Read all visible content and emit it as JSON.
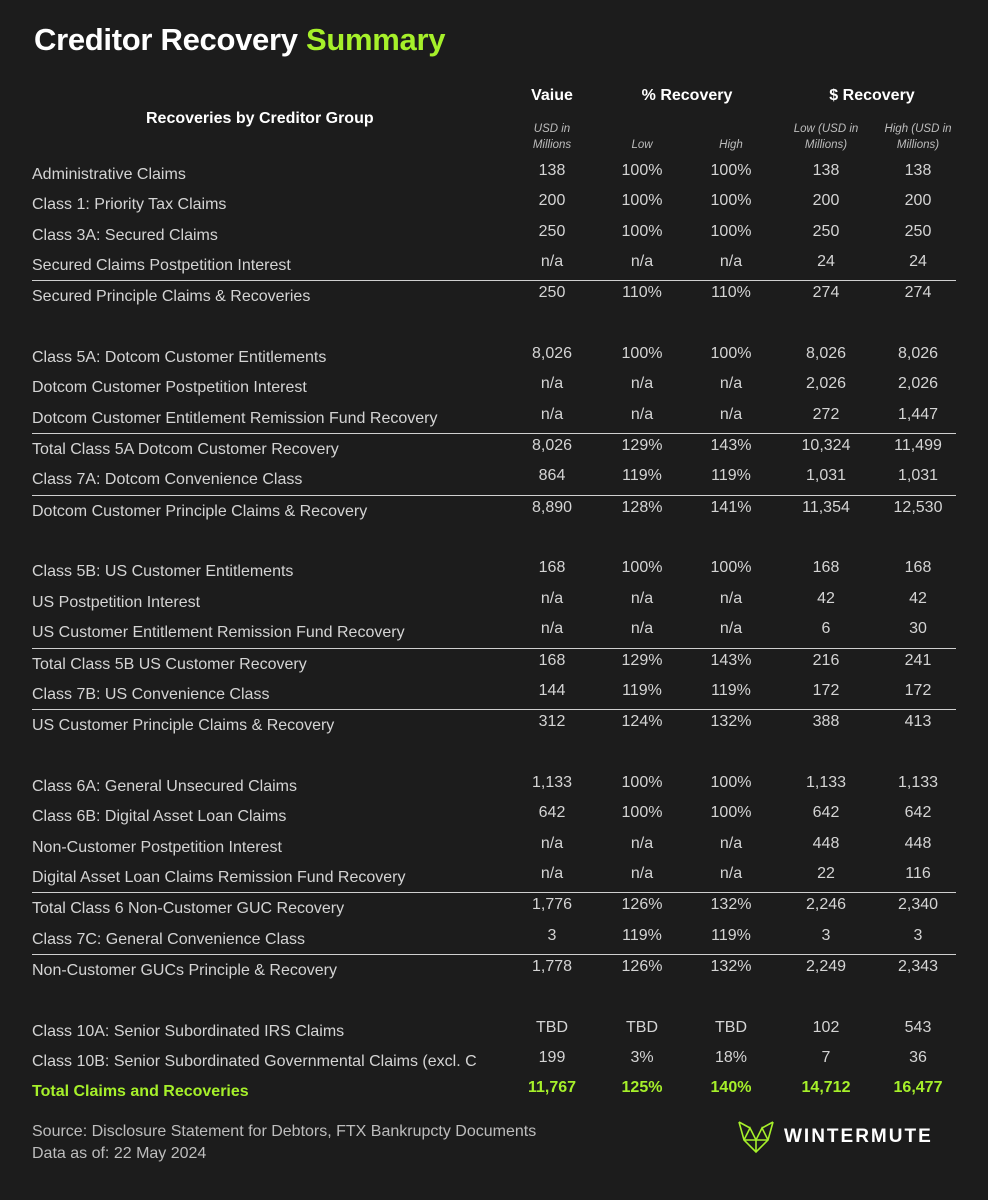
{
  "title": {
    "main": "Creditor Recovery",
    "accent": "Summary"
  },
  "colors": {
    "accent": "#a6f02a",
    "background": "#1c1c1c"
  },
  "headers": {
    "group": "Recoveries by Creditor Group",
    "value": "Vaiue",
    "pct_recovery": "% Recovery",
    "usd_recovery": "$ Recovery",
    "value_sub": "USD in Millions",
    "pct_low": "Low",
    "pct_high": "High",
    "usd_low": "Low (USD in Millions)",
    "usd_high": "High (USD in Millions)"
  },
  "rows": [
    {
      "type": "item",
      "label": "Administrative Claims",
      "cells": [
        "138",
        "100%",
        "100%",
        "138",
        "138"
      ]
    },
    {
      "type": "item",
      "label": "Class 1: Priority Tax Claims",
      "cells": [
        "200",
        "100%",
        "100%",
        "200",
        "200"
      ]
    },
    {
      "type": "item",
      "label": "Class 3A: Secured Claims",
      "cells": [
        "250",
        "100%",
        "100%",
        "250",
        "250"
      ]
    },
    {
      "type": "item",
      "label": "Secured Claims Postpetition Interest",
      "cells": [
        "n/a",
        "n/a",
        "n/a",
        "24",
        "24"
      ]
    },
    {
      "type": "subtotal",
      "label": "Secured Principle Claims & Recoveries",
      "cells": [
        "250",
        "110%",
        "110%",
        "274",
        "274"
      ]
    },
    {
      "type": "blank"
    },
    {
      "type": "item",
      "label": "Class 5A: Dotcom Customer Entitlements",
      "cells": [
        "8,026",
        "100%",
        "100%",
        "8,026",
        "8,026"
      ]
    },
    {
      "type": "item",
      "label": "Dotcom Customer Postpetition Interest",
      "cells": [
        "n/a",
        "n/a",
        "n/a",
        "2,026",
        "2,026"
      ]
    },
    {
      "type": "item",
      "label": "Dotcom Customer Entitlement Remission Fund Recovery",
      "cells": [
        "n/a",
        "n/a",
        "n/a",
        "272",
        "1,447"
      ]
    },
    {
      "type": "subtotal",
      "label": "Total Class 5A Dotcom Customer Recovery",
      "cells": [
        "8,026",
        "129%",
        "143%",
        "10,324",
        "11,499"
      ]
    },
    {
      "type": "item",
      "label": "Class 7A: Dotcom Convenience Class",
      "cells": [
        "864",
        "119%",
        "119%",
        "1,031",
        "1,031"
      ]
    },
    {
      "type": "subtotal",
      "label": "Dotcom Customer Principle Claims & Recovery",
      "cells": [
        "8,890",
        "128%",
        "141%",
        "11,354",
        "12,530"
      ]
    },
    {
      "type": "blank"
    },
    {
      "type": "item",
      "label": "Class 5B: US Customer Entitlements",
      "cells": [
        "168",
        "100%",
        "100%",
        "168",
        "168"
      ]
    },
    {
      "type": "item",
      "label": "US Postpetition Interest",
      "cells": [
        "n/a",
        "n/a",
        "n/a",
        "42",
        "42"
      ]
    },
    {
      "type": "item",
      "label": "US Customer Entitlement Remission Fund Recovery",
      "cells": [
        "n/a",
        "n/a",
        "n/a",
        "6",
        "30"
      ]
    },
    {
      "type": "subtotal",
      "label": "Total Class 5B US Customer Recovery",
      "cells": [
        "168",
        "129%",
        "143%",
        "216",
        "241"
      ]
    },
    {
      "type": "item",
      "label": "Class 7B: US Convenience Class",
      "cells": [
        "144",
        "119%",
        "119%",
        "172",
        "172"
      ]
    },
    {
      "type": "subtotal",
      "label": "US Customer Principle Claims & Recovery",
      "cells": [
        "312",
        "124%",
        "132%",
        "388",
        "413"
      ]
    },
    {
      "type": "blank"
    },
    {
      "type": "item",
      "label": "Class 6A: General Unsecured Claims",
      "cells": [
        "1,133",
        "100%",
        "100%",
        "1,133",
        "1,133"
      ]
    },
    {
      "type": "item",
      "label": "Class 6B: Digital Asset Loan Claims",
      "cells": [
        "642",
        "100%",
        "100%",
        "642",
        "642"
      ]
    },
    {
      "type": "item",
      "label": "Non-Customer Postpetition Interest",
      "cells": [
        "n/a",
        "n/a",
        "n/a",
        "448",
        "448"
      ]
    },
    {
      "type": "item",
      "label": "Digital Asset Loan Claims Remission Fund Recovery",
      "cells": [
        "n/a",
        "n/a",
        "n/a",
        "22",
        "116"
      ]
    },
    {
      "type": "subtotal",
      "label": "Total Class 6 Non-Customer GUC Recovery",
      "cells": [
        "1,776",
        "126%",
        "132%",
        "2,246",
        "2,340"
      ]
    },
    {
      "type": "item",
      "label": "Class 7C: General Convenience Class",
      "cells": [
        "3",
        "119%",
        "119%",
        "3",
        "3"
      ]
    },
    {
      "type": "subtotal",
      "label": "Non-Customer GUCs Principle & Recovery",
      "cells": [
        "1,778",
        "126%",
        "132%",
        "2,249",
        "2,343"
      ]
    },
    {
      "type": "blank"
    },
    {
      "type": "item",
      "label": "Class 10A: Senior Subordinated IRS Claims",
      "cells": [
        "TBD",
        "TBD",
        "TBD",
        "102",
        "543"
      ]
    },
    {
      "type": "item",
      "label": "Class 10B: Senior Subordinated Governmental Claims (excl. C",
      "cells": [
        "199",
        "3%",
        "18%",
        "7",
        "36"
      ]
    },
    {
      "type": "total",
      "label": "Total Claims and Recoveries",
      "cells": [
        "11,767",
        "125%",
        "140%",
        "14,712",
        "16,477"
      ]
    }
  ],
  "footer": {
    "source": "Source: Disclosure Statement for Debtors, FTX Bankrupcty Documents",
    "date": "Data as of: 22 May 2024"
  },
  "logo": {
    "text": "WINTERMUTE",
    "icon": "wintermute-logo-icon"
  }
}
